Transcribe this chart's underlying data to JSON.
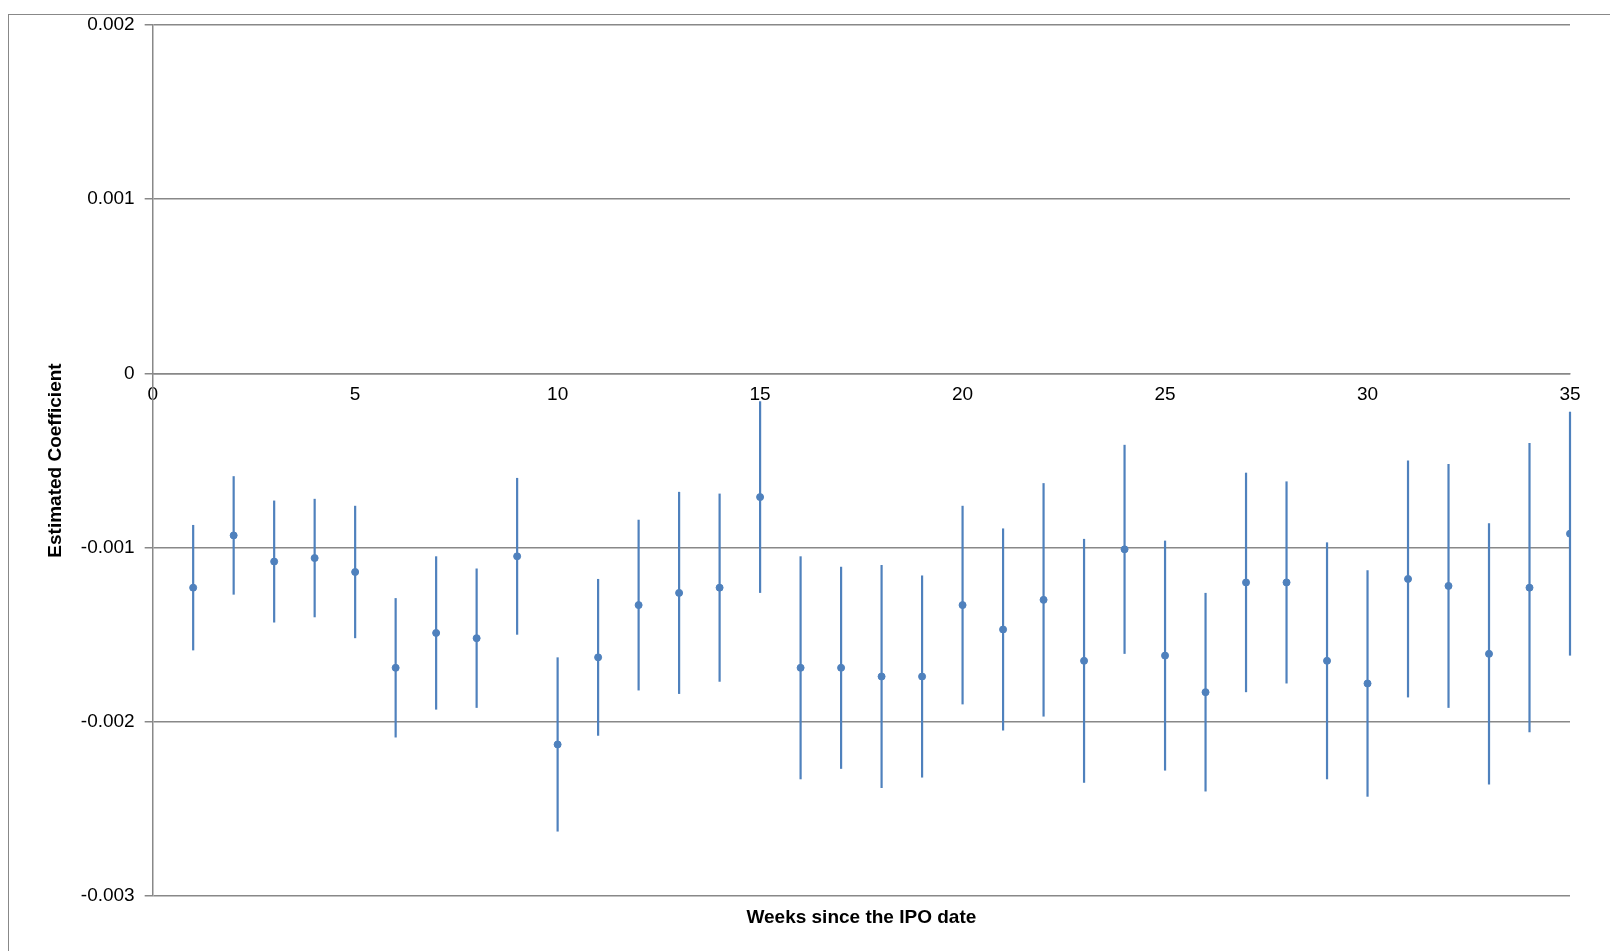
{
  "chart_data": {
    "type": "scatter",
    "xlabel": "Weeks since the IPO date",
    "ylabel": "Estimated Coefficient",
    "x": [
      1,
      2,
      3,
      4,
      5,
      6,
      7,
      8,
      9,
      10,
      11,
      12,
      13,
      14,
      15,
      16,
      17,
      18,
      19,
      20,
      21,
      22,
      23,
      24,
      25,
      26,
      27,
      28,
      29,
      30,
      31,
      32,
      33,
      34,
      35
    ],
    "series": [
      {
        "color": "#4f81bd",
        "values": [
          -0.00123,
          -0.00093,
          -0.00108,
          -0.00106,
          -0.00114,
          -0.00169,
          -0.00149,
          -0.00152,
          -0.00105,
          -0.00213,
          -0.00163,
          -0.00133,
          -0.00126,
          -0.00123,
          -0.00071,
          -0.00169,
          -0.00169,
          -0.00174,
          -0.00174,
          -0.00133,
          -0.00147,
          -0.0013,
          -0.00165,
          -0.00101,
          -0.00162,
          -0.00183,
          -0.0012,
          -0.0012,
          -0.00165,
          -0.00178,
          -0.00118,
          -0.00122,
          -0.00161,
          -0.00123,
          -0.00092
        ],
        "errors": [
          0.00036,
          0.00034,
          0.00035,
          0.00034,
          0.00038,
          0.0004,
          0.00044,
          0.0004,
          0.00045,
          0.0005,
          0.00045,
          0.00049,
          0.00058,
          0.00054,
          0.00055,
          0.00064,
          0.00058,
          0.00064,
          0.00058,
          0.00057,
          0.00058,
          0.00067,
          0.0007,
          0.0006,
          0.00066,
          0.00057,
          0.00063,
          0.00058,
          0.00068,
          0.00065,
          0.00068,
          0.0007,
          0.00075,
          0.00083,
          0.0007
        ]
      }
    ],
    "xlim": [
      0,
      35
    ],
    "xticks": [
      0,
      5,
      10,
      15,
      20,
      25,
      30,
      35
    ],
    "ylim": [
      -0.003,
      0.002
    ],
    "yticks": [
      -0.003,
      -0.002,
      -0.001,
      0,
      0.001,
      0.002
    ],
    "grid": "y",
    "legend": false,
    "marker": "circle"
  }
}
